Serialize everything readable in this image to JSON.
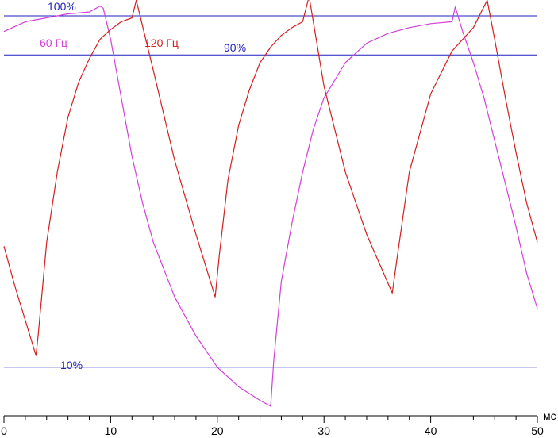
{
  "chart_data": {
    "type": "line",
    "title": "",
    "xlabel": "",
    "x_unit": "мс",
    "xlim": [
      0,
      50
    ],
    "ylim": [
      0,
      100
    ],
    "x_ticks": [
      "0",
      "10",
      "20",
      "30",
      "40",
      "50"
    ],
    "x_tick_values": [
      0,
      10,
      20,
      30,
      40,
      50
    ],
    "reference_lines": [
      {
        "label": "100%",
        "value": 100,
        "color": "#1f1fbf"
      },
      {
        "label": "90%",
        "value": 90,
        "color": "#1f1fbf"
      },
      {
        "label": "10%",
        "value": 10,
        "color": "#1f1fbf"
      }
    ],
    "series": [
      {
        "name": "60 Гц",
        "color": "#d43fd8",
        "x": [
          0,
          2,
          4,
          6,
          8,
          9,
          9.3,
          10,
          11,
          12,
          13,
          14,
          16,
          18,
          20,
          22,
          24,
          25,
          25.3,
          26,
          27,
          28,
          29,
          30,
          32,
          34,
          36,
          38,
          40,
          42,
          42.3,
          43,
          44,
          45,
          46,
          47,
          48,
          49,
          50
        ],
        "y": [
          96,
          98.5,
          99.5,
          100.5,
          101,
          102.5,
          102,
          94,
          79,
          64,
          52,
          42,
          28,
          18,
          10,
          5,
          1.5,
          0,
          12,
          32,
          47,
          60,
          71,
          79,
          88,
          93,
          95.5,
          97,
          98,
          98.5,
          102.3,
          96,
          88,
          79,
          68,
          57,
          46,
          34,
          25
        ]
      },
      {
        "name": "120 Гц",
        "color": "#d41f1f",
        "x": [
          0,
          1,
          2,
          3,
          3.2,
          4,
          5,
          6,
          7,
          8,
          9,
          10,
          11,
          12,
          12.4,
          14,
          16,
          18,
          19.8,
          20.2,
          21,
          22,
          23,
          24,
          25,
          26,
          27,
          28,
          28.6,
          30,
          32,
          34,
          36.4,
          36.8,
          38,
          40,
          42,
          44,
          45.3,
          46,
          47,
          48,
          49,
          50
        ],
        "y": [
          41,
          31,
          22,
          13,
          18,
          42,
          60,
          74,
          83,
          89,
          94,
          96.5,
          98.5,
          99.5,
          104,
          86,
          63,
          44,
          28,
          39,
          58,
          72,
          81,
          88,
          92,
          95,
          97,
          98.5,
          105,
          82,
          60,
          44,
          29,
          37,
          60,
          80,
          91,
          97,
          104,
          94,
          79,
          65,
          52,
          42
        ]
      }
    ]
  }
}
